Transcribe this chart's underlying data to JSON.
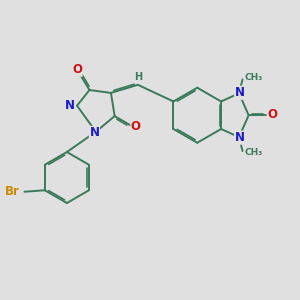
{
  "bg_color": "#e0e0e0",
  "bond_color": "#3a7a5a",
  "bond_width": 1.4,
  "dbl_sep": 0.055,
  "atom_colors": {
    "N": "#1a1acc",
    "O": "#cc1111",
    "Br": "#cc8800",
    "H": "#3a7a5a",
    "C": "#3a7a5a"
  },
  "fs_main": 8.5,
  "fs_small": 7.0
}
